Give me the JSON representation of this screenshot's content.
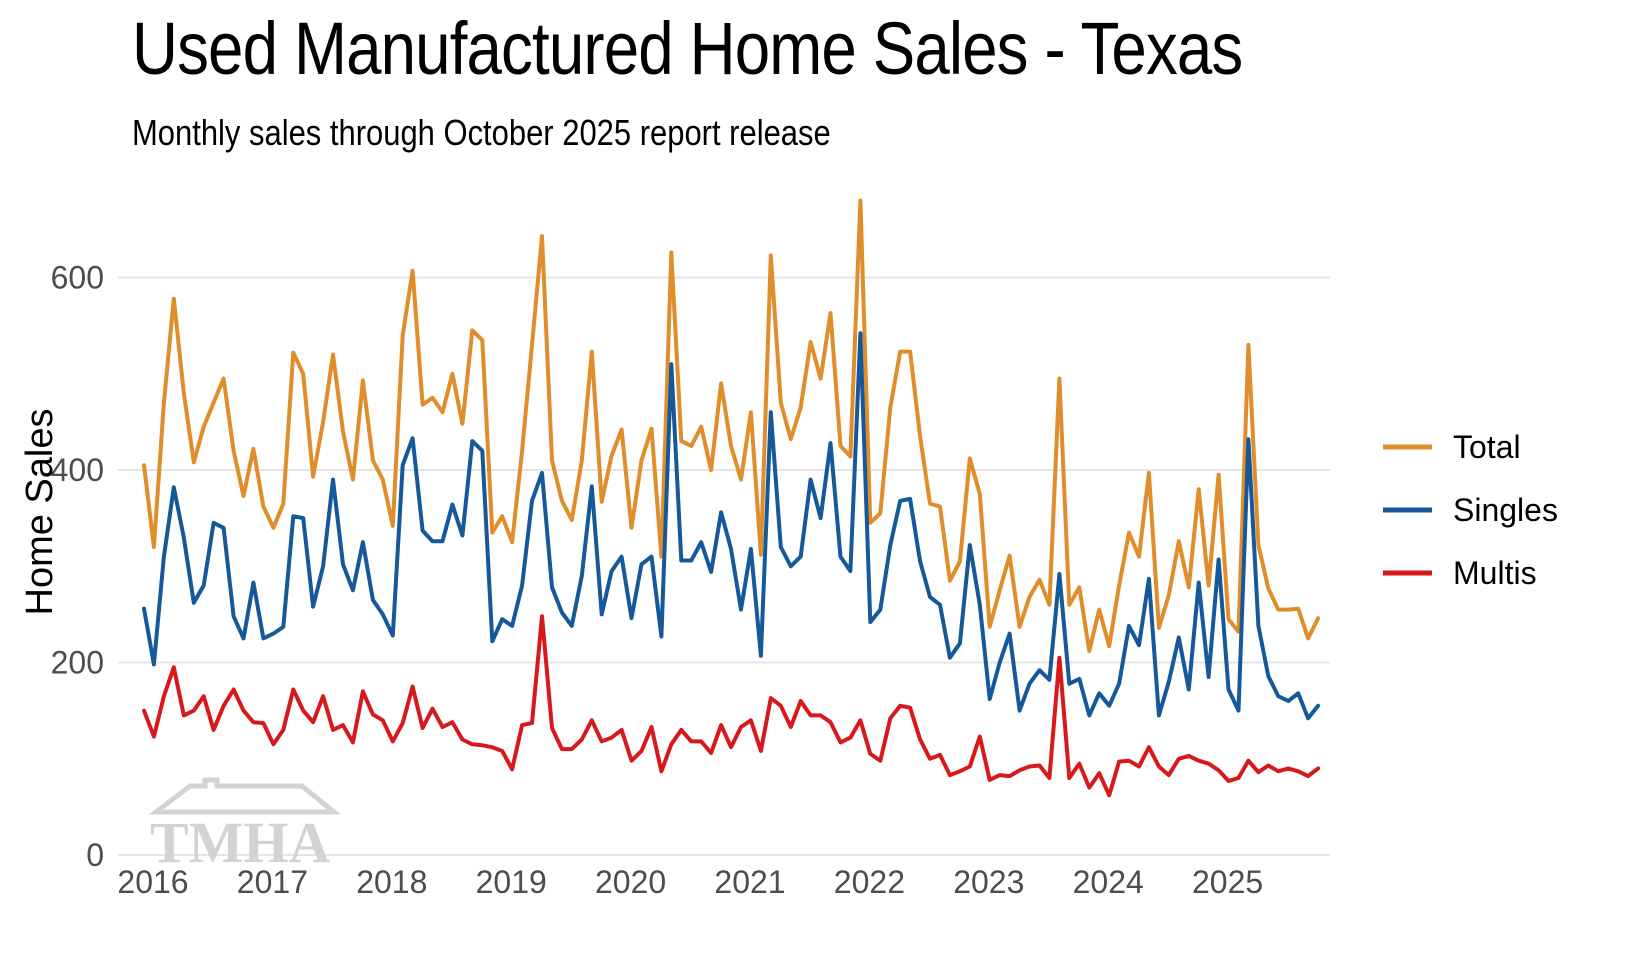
{
  "title": "Used Manufactured Home Sales - Texas",
  "subtitle": "Monthly sales through October 2025 report release",
  "watermark": "TMHA",
  "chart_data": {
    "type": "line",
    "title": "Used Manufactured Home Sales - Texas",
    "subtitle": "Monthly sales through October 2025 report release",
    "xlabel": "",
    "ylabel": "Home Sales",
    "ylim": [
      0,
      680
    ],
    "xlim": [
      "2016-01",
      "2025-10"
    ],
    "yticks": [
      0,
      200,
      400,
      600
    ],
    "xticks": [
      "2016",
      "2017",
      "2018",
      "2019",
      "2020",
      "2021",
      "2022",
      "2023",
      "2024",
      "2025"
    ],
    "grid": "horizontal",
    "legend_position": "right",
    "x_start": "2016-01",
    "x_step": "month",
    "series": [
      {
        "name": "Total",
        "color": "#E08E2B",
        "values": [
          405,
          320,
          470,
          578,
          480,
          408,
          445,
          470,
          495,
          420,
          373,
          422,
          362,
          340,
          365,
          522,
          500,
          393,
          450,
          520,
          440,
          390,
          493,
          410,
          390,
          342,
          540,
          607,
          468,
          475,
          460,
          500,
          448,
          545,
          535,
          335,
          352,
          325,
          420,
          530,
          643,
          410,
          368,
          348,
          410,
          523,
          367,
          415,
          442,
          340,
          410,
          443,
          310,
          626,
          430,
          425,
          445,
          400,
          490,
          425,
          390,
          460,
          312,
          623,
          470,
          432,
          465,
          533,
          495,
          563,
          425,
          414,
          680,
          345,
          355,
          465,
          523,
          523,
          435,
          365,
          362,
          285,
          305,
          412,
          375,
          237,
          275,
          311,
          237,
          268,
          286,
          260,
          495,
          260,
          278,
          212,
          255,
          217,
          280,
          335,
          310,
          397,
          236,
          270,
          326,
          278,
          380,
          280,
          395,
          245,
          232,
          530,
          322,
          277,
          255,
          255,
          256,
          225,
          246
        ]
      },
      {
        "name": "Singles",
        "color": "#15599B",
        "values": [
          256,
          198,
          310,
          382,
          330,
          262,
          280,
          345,
          340,
          248,
          225,
          283,
          225,
          230,
          237,
          352,
          350,
          258,
          300,
          390,
          302,
          275,
          325,
          265,
          250,
          228,
          405,
          433,
          337,
          326,
          326,
          364,
          332,
          430,
          420,
          222,
          245,
          238,
          280,
          368,
          397,
          278,
          252,
          238,
          290,
          383,
          250,
          295,
          310,
          246,
          302,
          310,
          227,
          510,
          306,
          306,
          325,
          294,
          356,
          318,
          255,
          318,
          207,
          460,
          320,
          300,
          310,
          390,
          350,
          428,
          310,
          295,
          542,
          242,
          255,
          322,
          368,
          370,
          305,
          268,
          260,
          205,
          220,
          322,
          260,
          162,
          200,
          230,
          150,
          178,
          192,
          182,
          292,
          178,
          183,
          145,
          168,
          155,
          178,
          238,
          218,
          287,
          145,
          180,
          226,
          172,
          283,
          185,
          307,
          172,
          150,
          432,
          238,
          186,
          165,
          160,
          168,
          142,
          155
        ]
      },
      {
        "name": "Multis",
        "color": "#D7191C",
        "values": [
          150,
          123,
          165,
          195,
          145,
          150,
          165,
          130,
          155,
          172,
          150,
          138,
          137,
          115,
          130,
          172,
          150,
          138,
          165,
          130,
          135,
          117,
          170,
          146,
          140,
          118,
          137,
          175,
          132,
          152,
          133,
          138,
          120,
          115,
          114,
          112,
          108,
          89,
          135,
          137,
          248,
          132,
          110,
          110,
          120,
          140,
          118,
          122,
          130,
          98,
          108,
          133,
          87,
          115,
          130,
          118,
          118,
          106,
          135,
          112,
          133,
          140,
          108,
          163,
          155,
          133,
          160,
          145,
          145,
          138,
          117,
          122,
          140,
          105,
          98,
          142,
          155,
          153,
          120,
          100,
          104,
          83,
          87,
          92,
          123,
          78,
          83,
          82,
          88,
          92,
          93,
          80,
          205,
          80,
          95,
          70,
          85,
          62,
          97,
          98,
          92,
          112,
          92,
          83,
          100,
          103,
          98,
          95,
          88,
          77,
          80,
          98,
          86,
          93,
          87,
          90,
          87,
          82,
          90
        ]
      }
    ]
  }
}
